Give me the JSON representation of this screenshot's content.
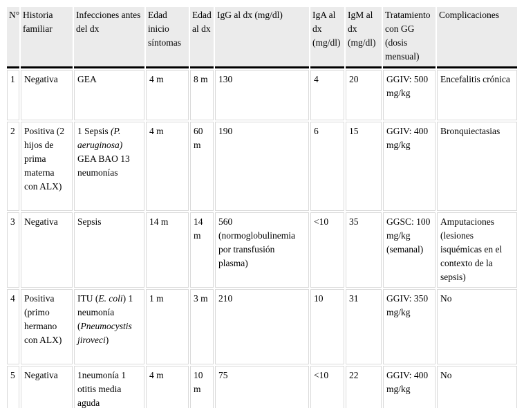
{
  "table": {
    "description": "Tabla de pacientes: características clínicas e inmunológicas al diagnóstico",
    "columns": [
      "N°",
      "Historia familiar",
      "Infecciones antes del dx",
      "Edad inicio síntomas",
      "Edad al dx",
      "IgG al dx (mg/dl)",
      "IgA al dx (mg/dl)",
      "IgM al dx (mg/dl)",
      "Tratamiento con GG (dosis mensual)",
      "Complicaciones"
    ],
    "rows": [
      [
        "1",
        "Negativa",
        "GEA",
        "4 m",
        "8 m",
        "130",
        "4",
        "20",
        "GGIV: 500 mg/kg",
        "Encefalitis crónica"
      ],
      [
        "2",
        "Positiva (2 hijos de prima materna con ALX)",
        [
          {
            "t": "1 Sepsis "
          },
          {
            "t": "(P. aeruginosa)",
            "i": true
          },
          {
            "t": " GEA BAO 13 neumonías"
          }
        ],
        "4 m",
        "60 m",
        "190",
        "6",
        "15",
        "GGIV: 400 mg/kg",
        "Bronquiectasias"
      ],
      [
        "3",
        "Negativa",
        "Sepsis",
        "14 m",
        "14 m",
        "560 (normoglobulinemia por transfusión plasma)",
        "<10",
        "35",
        "GGSC: 100 mg/kg (semanal)",
        "Amputaciones (lesiones isquémicas en el contexto de la sepsis)"
      ],
      [
        "4",
        "Positiva (primo hermano con ALX)",
        [
          {
            "t": "ITU ("
          },
          {
            "t": "E. coli",
            "i": true
          },
          {
            "t": ") 1 neumonía ("
          },
          {
            "t": "Pneumocystis jiroveci",
            "i": true
          },
          {
            "t": ")"
          }
        ],
        "1 m",
        "3 m",
        "210",
        "10",
        "31",
        "GGIV: 350 mg/kg",
        "No"
      ],
      [
        "5",
        "Negativa",
        "1neumonía 1 otitis media aguda",
        "4 m",
        "10 m",
        "75",
        "<10",
        "22",
        "GGIV: 400 mg/kg",
        "No"
      ]
    ],
    "colors": {
      "header_background": "#ebebeb",
      "header_rule": "#000000",
      "cell_border": "#d9d9d9",
      "text": "#000000",
      "page_background": "#ffffff"
    }
  }
}
